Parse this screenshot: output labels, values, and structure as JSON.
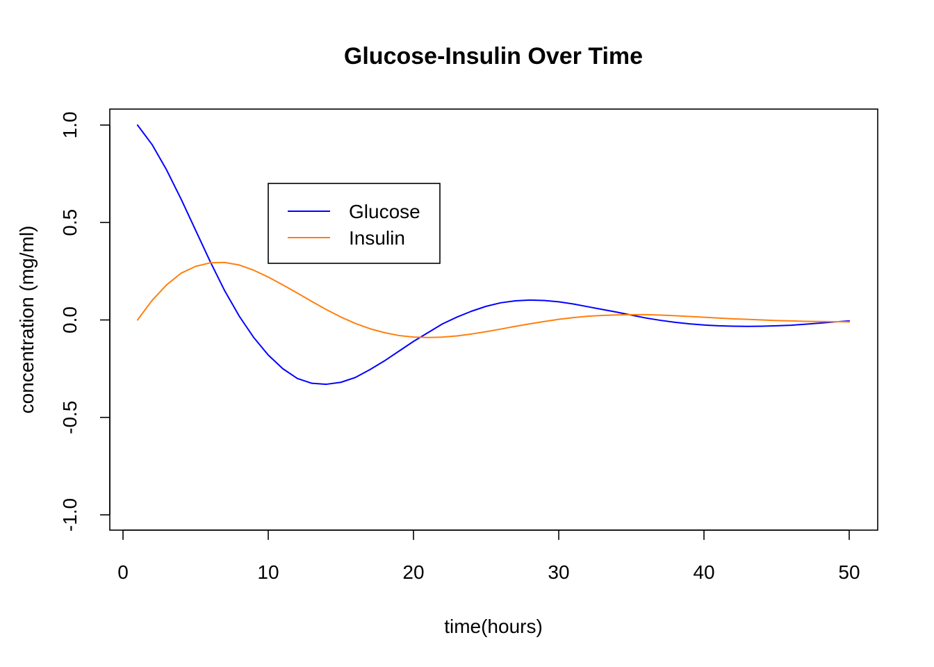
{
  "chart_data": {
    "type": "line",
    "title": "Glucose-Insulin Over Time",
    "xlabel": "time(hours)",
    "ylabel": "concentration (mg/ml)",
    "xlim": [
      0,
      50
    ],
    "ylim": [
      -1.0,
      1.0
    ],
    "x_ticks": [
      0,
      10,
      20,
      30,
      40,
      50
    ],
    "x_tick_labels": [
      "0",
      "10",
      "20",
      "30",
      "40",
      "50"
    ],
    "y_ticks": [
      -1.0,
      -0.5,
      0.0,
      0.5,
      1.0
    ],
    "y_tick_labels": [
      "-1.0",
      "-0.5",
      "0.0",
      "0.5",
      "1.0"
    ],
    "grid": false,
    "legend_position": "upper-left-center",
    "x": [
      1,
      2,
      3,
      4,
      5,
      6,
      7,
      8,
      9,
      10,
      11,
      12,
      13,
      14,
      15,
      16,
      17,
      18,
      19,
      20,
      21,
      22,
      23,
      24,
      25,
      26,
      27,
      28,
      29,
      30,
      31,
      32,
      33,
      34,
      35,
      36,
      37,
      38,
      39,
      40,
      41,
      42,
      43,
      44,
      45,
      46,
      47,
      48,
      49,
      50
    ],
    "series": [
      {
        "name": "Glucose",
        "color": "#0000ff",
        "values": [
          1.0,
          0.9,
          0.77,
          0.62,
          0.46,
          0.3,
          0.15,
          0.02,
          -0.09,
          -0.18,
          -0.25,
          -0.3,
          -0.325,
          -0.33,
          -0.32,
          -0.295,
          -0.255,
          -0.21,
          -0.16,
          -0.11,
          -0.065,
          -0.02,
          0.015,
          0.045,
          0.07,
          0.088,
          0.098,
          0.102,
          0.1,
          0.093,
          0.082,
          0.068,
          0.054,
          0.04,
          0.025,
          0.01,
          -0.002,
          -0.012,
          -0.02,
          -0.026,
          -0.03,
          -0.032,
          -0.033,
          -0.032,
          -0.03,
          -0.027,
          -0.022,
          -0.016,
          -0.01,
          -0.005
        ]
      },
      {
        "name": "Insulin",
        "color": "#ff7f0e",
        "values": [
          0.0,
          0.1,
          0.18,
          0.24,
          0.275,
          0.293,
          0.295,
          0.282,
          0.255,
          0.22,
          0.18,
          0.138,
          0.095,
          0.053,
          0.015,
          -0.018,
          -0.045,
          -0.065,
          -0.08,
          -0.088,
          -0.09,
          -0.088,
          -0.082,
          -0.072,
          -0.06,
          -0.047,
          -0.033,
          -0.02,
          -0.008,
          0.003,
          0.012,
          0.019,
          0.023,
          0.026,
          0.027,
          0.027,
          0.025,
          0.022,
          0.018,
          0.014,
          0.01,
          0.006,
          0.003,
          0.0,
          -0.003,
          -0.005,
          -0.007,
          -0.008,
          -0.009,
          -0.01
        ]
      }
    ]
  }
}
